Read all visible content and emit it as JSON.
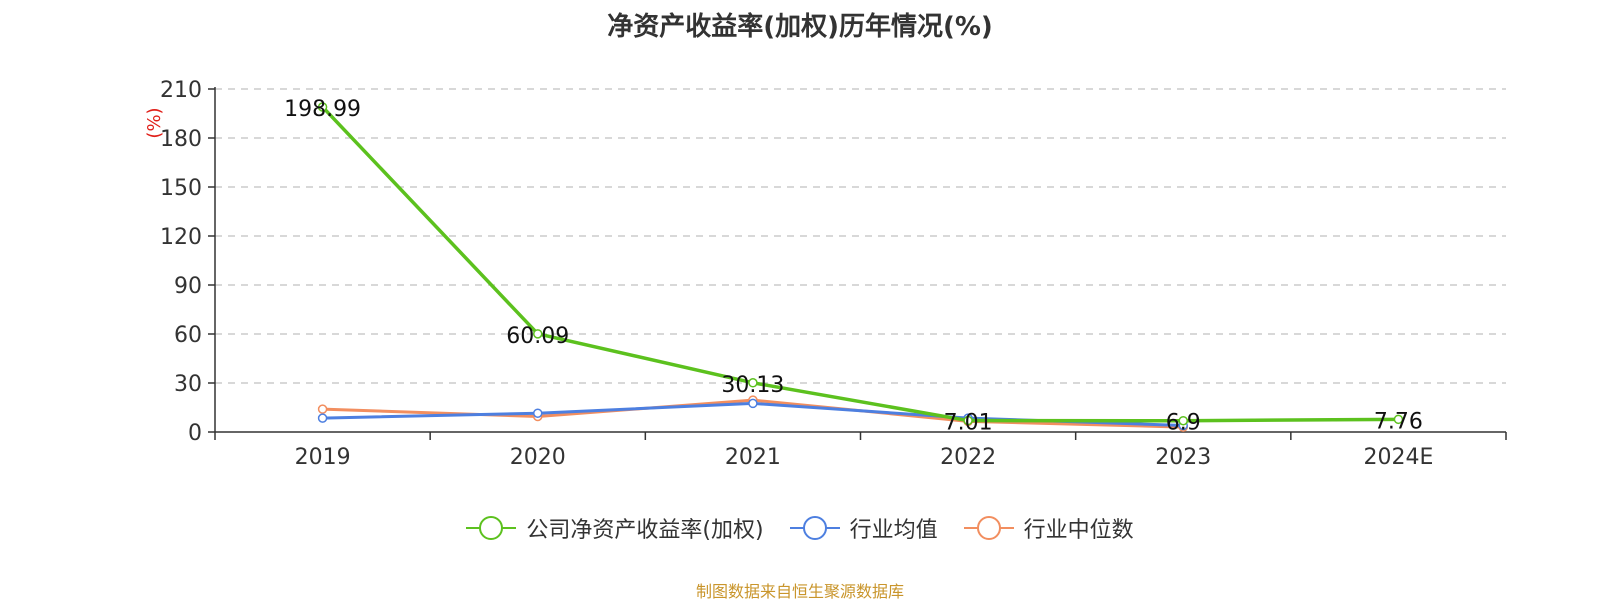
{
  "chart_data": {
    "type": "line",
    "title": "净资产收益率(加权)历年情况(%)",
    "ylabel": "(%)",
    "xlabel": "",
    "categories": [
      "2019",
      "2020",
      "2021",
      "2022",
      "2023",
      "2024E"
    ],
    "ylim": [
      0,
      210
    ],
    "yticks": [
      0,
      30,
      60,
      90,
      120,
      150,
      180,
      210
    ],
    "grid": true,
    "legend_position": "bottom",
    "series": [
      {
        "name": "公司净资产收益率(加权)",
        "color": "#5cc11e",
        "values": [
          198.99,
          60.09,
          30.13,
          7.01,
          6.9,
          7.76
        ],
        "labels": [
          "198.99",
          "60.09",
          "30.13",
          "7.01",
          "6.9",
          "7.76"
        ]
      },
      {
        "name": "行业均值",
        "color": "#4d7fe0",
        "values": [
          8.5,
          11.5,
          17.5,
          8.5,
          4.0,
          null
        ]
      },
      {
        "name": "行业中位数",
        "color": "#f28e5f",
        "values": [
          14.0,
          9.5,
          19.5,
          6.5,
          3.0,
          null
        ]
      }
    ]
  },
  "source": "制图数据来自恒生聚源数据库"
}
